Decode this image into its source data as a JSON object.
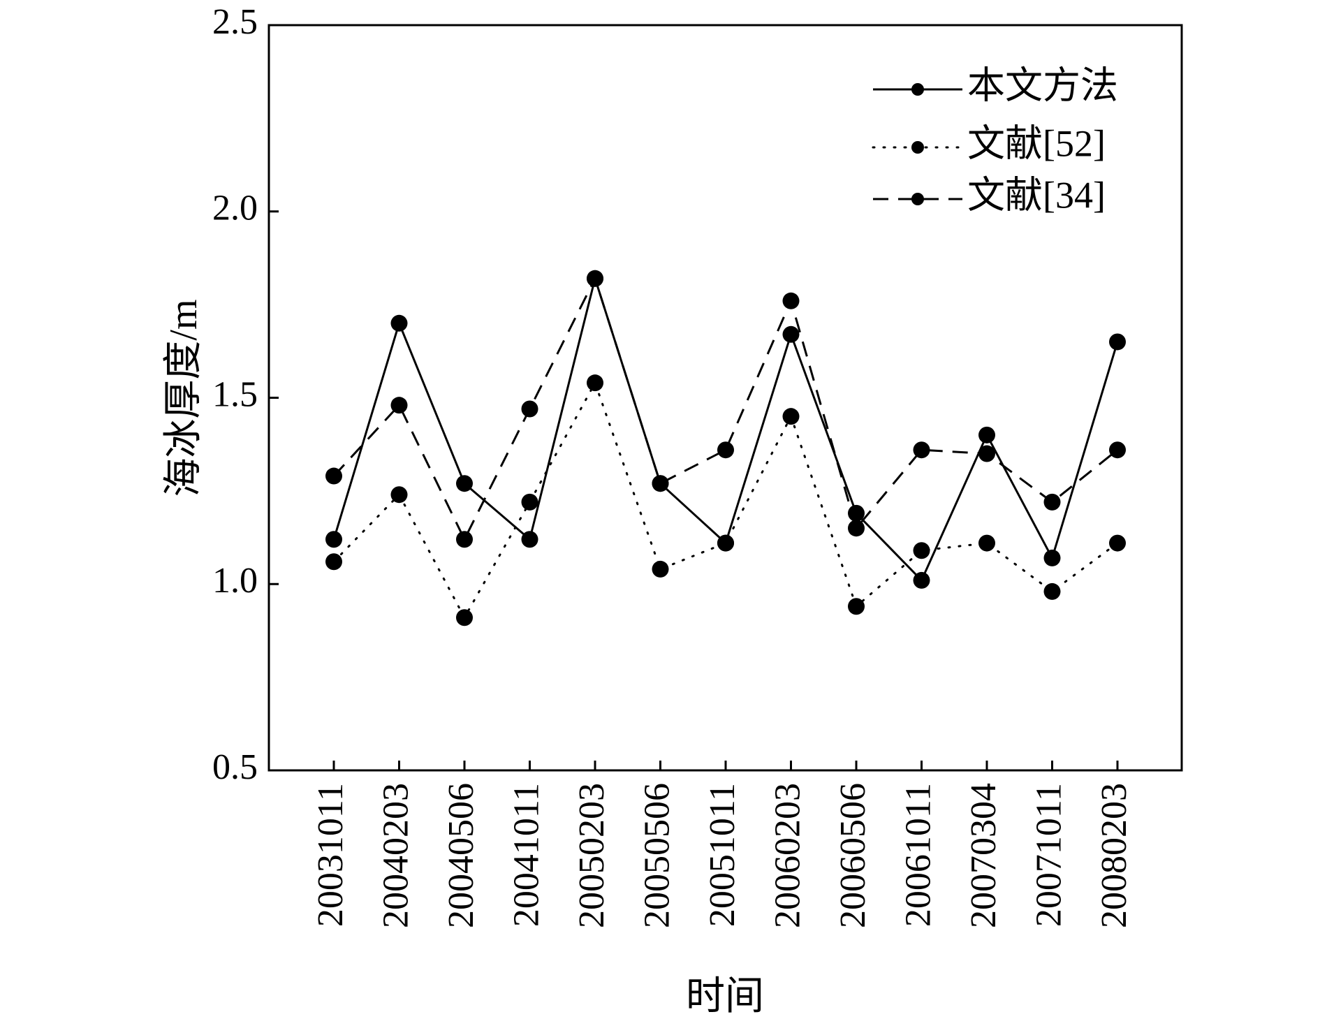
{
  "chart_data": {
    "type": "line",
    "title": "",
    "xlabel": "时间",
    "ylabel": "海冰厚度/m",
    "ylim": [
      0.5,
      2.5
    ],
    "yticks": [
      "0.5",
      "1.0",
      "1.5",
      "2.0",
      "2.5"
    ],
    "grid": false,
    "legend_position": "top-right",
    "categories": [
      "20031011",
      "20040203",
      "20040506",
      "20041011",
      "20050203",
      "20050506",
      "20051011",
      "20060203",
      "20060506",
      "20061011",
      "20070304",
      "20071011",
      "20080203"
    ],
    "series": [
      {
        "name": "本文方法",
        "style": "solid",
        "color": "#000000",
        "values": [
          1.12,
          1.7,
          1.27,
          1.12,
          1.82,
          1.27,
          1.11,
          1.67,
          1.19,
          1.01,
          1.4,
          1.07,
          1.65
        ]
      },
      {
        "name": "文献[52]",
        "style": "dotted",
        "color": "#000000",
        "values": [
          1.06,
          1.24,
          0.91,
          1.22,
          1.54,
          1.04,
          1.11,
          1.45,
          0.94,
          1.09,
          1.11,
          0.98,
          1.11
        ]
      },
      {
        "name": "文献[34]",
        "style": "dashed",
        "color": "#000000",
        "values": [
          1.29,
          1.48,
          1.12,
          1.47,
          1.82,
          1.27,
          1.36,
          1.76,
          1.15,
          1.36,
          1.35,
          1.22,
          1.36
        ]
      }
    ]
  }
}
